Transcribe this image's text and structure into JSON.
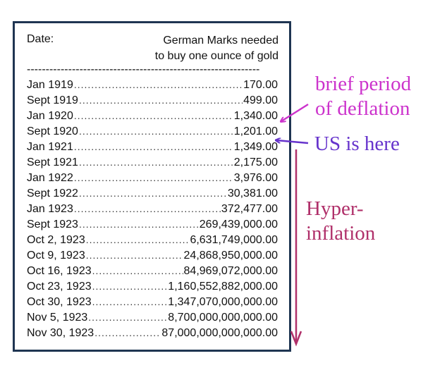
{
  "table": {
    "header_date": "Date:",
    "header_value_line1": "German Marks needed",
    "header_value_line2": "to buy one ounce of gold",
    "separator": "--------------------------------------------------------------",
    "rows": [
      {
        "date": "Jan 1919",
        "value": "170.00"
      },
      {
        "date": "Sept 1919",
        "value": "499.00"
      },
      {
        "date": "Jan 1920",
        "value": "1,340.00"
      },
      {
        "date": "Sept 1920",
        "value": "1,201.00"
      },
      {
        "date": "Jan 1921",
        "value": "1,349.00"
      },
      {
        "date": "Sept 1921",
        "value": "2,175.00"
      },
      {
        "date": "Jan 1922",
        "value": "3,976.00"
      },
      {
        "date": "Sept 1922",
        "value": "30,381.00"
      },
      {
        "date": "Jan 1923",
        "value": "372,477.00"
      },
      {
        "date": "Sept 1923",
        "value": "269,439,000.00"
      },
      {
        "date": "Oct 2, 1923",
        "value": "6,631,749,000.00"
      },
      {
        "date": "Oct 9, 1923",
        "value": "24,868,950,000.00"
      },
      {
        "date": "Oct 16, 1923",
        "value": "84,969,072,000.00"
      },
      {
        "date": "Oct 23, 1923",
        "value": "1,160,552,882,000.00"
      },
      {
        "date": "Oct 30, 1923",
        "value": "1,347,070,000,000.00"
      },
      {
        "date": "Nov 5, 1923",
        "value": "8,700,000,000,000.00"
      },
      {
        "date": "Nov 30, 1923",
        "value": "87,000,000,000,000.00"
      }
    ]
  },
  "annotations": {
    "deflation_line1": "brief period",
    "deflation_line2": "of deflation",
    "us_here": "US is here",
    "hyper_line1": "Hyper-",
    "hyper_line2": "inflation"
  },
  "colors": {
    "border": "#1f3552",
    "deflation": "#cc33cc",
    "us_here": "#6633cc",
    "hyperinflation": "#b0306a"
  }
}
